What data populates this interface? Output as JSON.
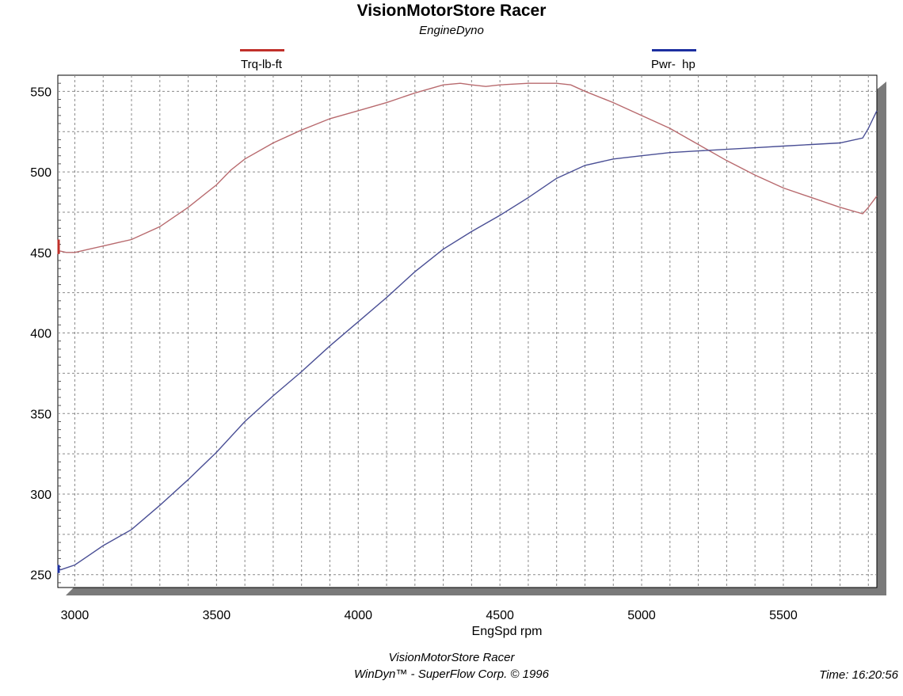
{
  "header": {
    "title": "VisionMotorStore Racer",
    "subtitle": "EngineDyno"
  },
  "legend": [
    {
      "label": "Trq-lb-ft",
      "color": "#c0302a"
    },
    {
      "label": "Pwr-  hp",
      "color": "#1c2fa0"
    }
  ],
  "footer": {
    "line1": "VisionMotorStore Racer",
    "line2": "WinDyn™ - SuperFlow Corp. © 1996",
    "time": "Time: 16:20:56"
  },
  "colors": {
    "torque_line": "#b86a6e",
    "power_line": "#4a4f95",
    "grid": "#8a8a8a",
    "shadow": "#7a7a7a"
  },
  "chart_data": {
    "type": "line",
    "title": "VisionMotorStore Racer",
    "subtitle": "EngineDyno",
    "xlabel": "EngSpd  rpm",
    "ylabel": "",
    "xlim": [
      2940,
      5830
    ],
    "ylim": [
      242,
      560
    ],
    "x_ticks": [
      3000,
      3500,
      4000,
      4500,
      5000,
      5500
    ],
    "y_ticks": [
      250,
      300,
      350,
      400,
      450,
      500,
      550
    ],
    "grid": true,
    "legend_position": "top",
    "series": [
      {
        "name": "Trq-lb-ft",
        "x": [
          2940,
          2945,
          2970,
          3000,
          3050,
          3100,
          3150,
          3200,
          3300,
          3400,
          3500,
          3550,
          3600,
          3700,
          3800,
          3900,
          4000,
          4100,
          4200,
          4300,
          4360,
          4400,
          4450,
          4500,
          4600,
          4700,
          4750,
          4800,
          4900,
          5000,
          5100,
          5200,
          5300,
          5400,
          5500,
          5600,
          5700,
          5780,
          5800,
          5830
        ],
        "values": [
          458,
          451,
          450,
          450,
          452,
          454,
          456,
          458,
          466,
          478,
          492,
          501,
          508,
          518,
          526,
          533,
          538,
          543,
          549,
          554,
          555,
          554,
          553,
          554,
          555,
          555,
          554,
          550,
          543,
          535,
          527,
          517,
          507,
          498,
          490,
          484,
          478,
          474,
          478,
          485
        ],
        "color": "#b86a6e"
      },
      {
        "name": "Pwr-  hp",
        "x": [
          2940,
          2950,
          3000,
          3050,
          3100,
          3200,
          3300,
          3400,
          3500,
          3600,
          3700,
          3800,
          3900,
          4000,
          4100,
          4200,
          4300,
          4400,
          4500,
          4600,
          4700,
          4800,
          4900,
          5000,
          5100,
          5200,
          5300,
          5400,
          5500,
          5600,
          5700,
          5780,
          5800,
          5830
        ],
        "values": [
          254,
          253,
          256,
          262,
          268,
          278,
          293,
          309,
          326,
          345,
          361,
          376,
          392,
          407,
          422,
          438,
          452,
          463,
          473,
          484,
          496,
          504,
          508,
          510,
          512,
          513,
          514,
          515,
          516,
          517,
          518,
          521,
          527,
          538
        ],
        "color": "#4a4f95"
      }
    ]
  }
}
